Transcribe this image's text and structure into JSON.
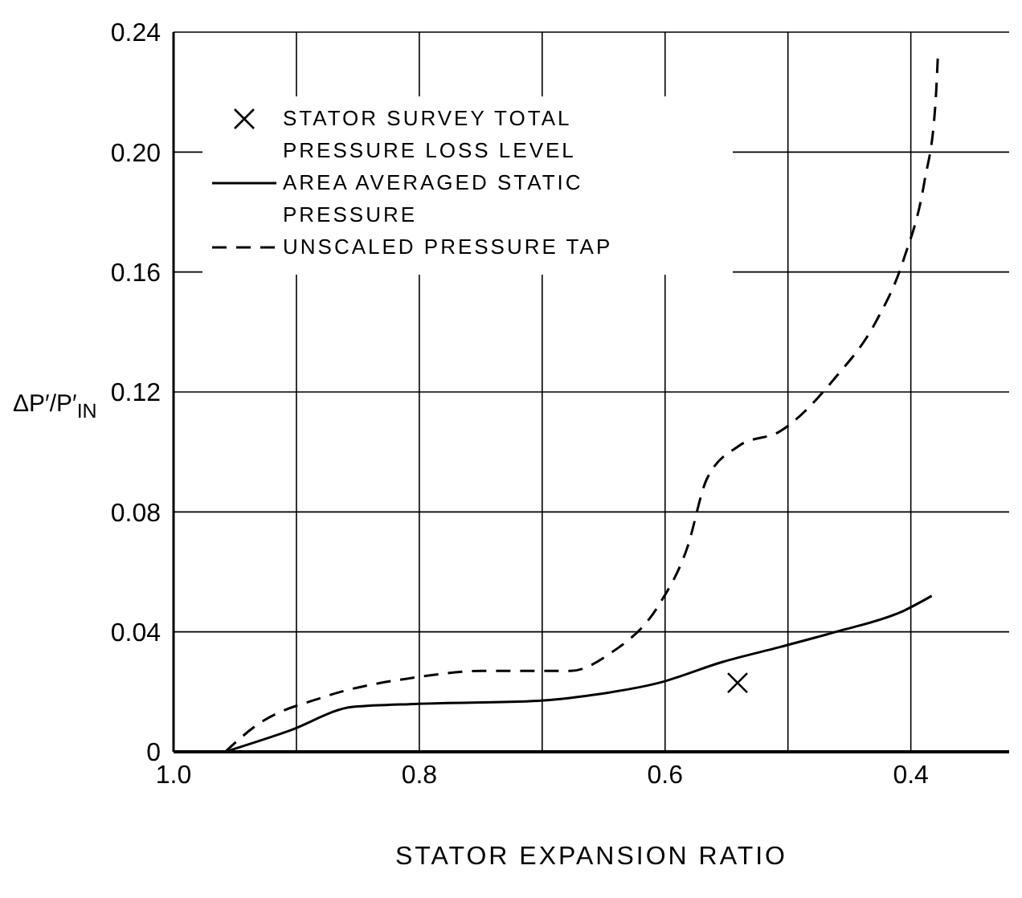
{
  "chart_data": {
    "type": "line",
    "xlabel": "STATOR EXPANSION RATIO",
    "ylabel": "ΔP′/P′$_{IN}$",
    "xlim": [
      1.0,
      0.32
    ],
    "xticks": [
      {
        "value": 1.0,
        "label": "1.0"
      },
      {
        "value": 0.9,
        "label": null
      },
      0.8,
      {
        "value": 0.7,
        "label": null
      },
      0.6,
      {
        "value": 0.5,
        "label": null
      },
      0.4
    ],
    "ylim": [
      0,
      0.24
    ],
    "yticks": [
      0,
      0.04,
      0.08,
      0.12,
      0.16,
      {
        "value": 0.2,
        "label": "0.20"
      },
      0.24
    ],
    "grid": true,
    "legend": "top left",
    "series": [
      {
        "name": "STATOR SURVEY TOTAL PRESSURE LOSS LEVEL",
        "type": "scatter",
        "marker": "cross",
        "color": "#000000",
        "x": [
          0.541
        ],
        "values": [
          0.023
        ]
      },
      {
        "name": "AREA AVERAGED STATIC PRESSURE",
        "line_style": "solid",
        "marker": "none",
        "color": "#000000",
        "x": [
          0.958,
          0.906,
          0.854,
          0.801,
          0.703,
          0.658,
          0.605,
          0.553,
          0.506,
          0.461,
          0.406,
          0.383
        ],
        "values": [
          0,
          0.007,
          0.015,
          0.016,
          0.017,
          0.019,
          0.023,
          0.03,
          0.035,
          0.04,
          0.047,
          0.052
        ]
      },
      {
        "name": "UNSCALED PRESSURE TAP",
        "line_style": "dashed",
        "marker": "none",
        "color": "#000000",
        "x": [
          0.958,
          0.932,
          0.88,
          0.8,
          0.749,
          0.677,
          0.644,
          0.605,
          0.582,
          0.566,
          0.54,
          0.506,
          0.461,
          0.429,
          0.406,
          0.389,
          0.38,
          0.378
        ],
        "values": [
          0,
          0.009,
          0.018,
          0.025,
          0.027,
          0.027,
          0.033,
          0.049,
          0.068,
          0.091,
          0.102,
          0.107,
          0.125,
          0.143,
          0.164,
          0.19,
          0.216,
          0.232
        ]
      }
    ]
  }
}
